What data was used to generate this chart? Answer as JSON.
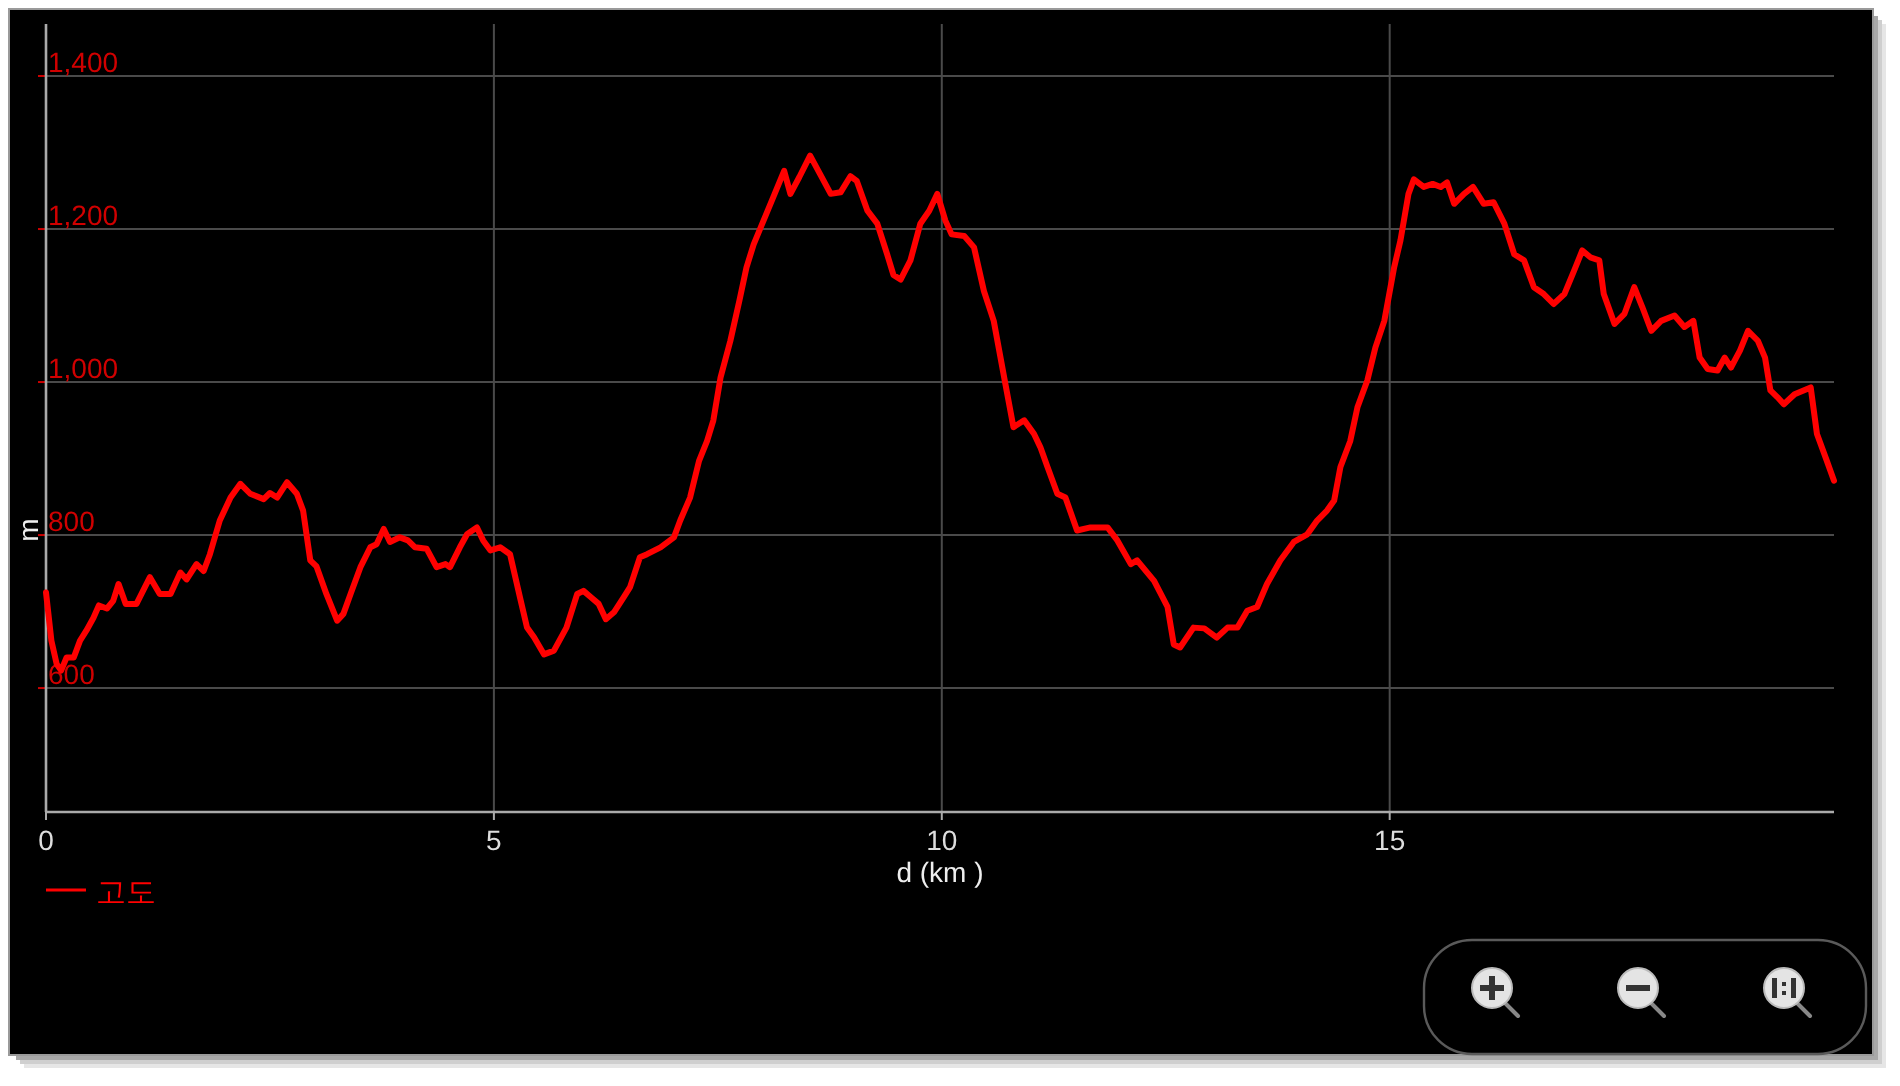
{
  "chart_data": {
    "type": "line",
    "xlabel": "d (km )",
    "ylabel": "m",
    "x": [
      0,
      0.06,
      0.12,
      0.17,
      0.23,
      0.31,
      0.38,
      0.45,
      0.53,
      0.59,
      0.68,
      0.75,
      0.81,
      0.89,
      1.01,
      1.16,
      1.27,
      1.39,
      1.5,
      1.57,
      1.68,
      1.76,
      1.83,
      1.94,
      2.06,
      2.17,
      2.28,
      2.43,
      2.5,
      2.58,
      2.69,
      2.8,
      2.87,
      2.95,
      3.02,
      3.13,
      3.25,
      3.32,
      3.4,
      3.51,
      3.62,
      3.69,
      3.77,
      3.84,
      3.95,
      4.04,
      4.12,
      4.25,
      4.36,
      4.46,
      4.51,
      4.62,
      4.7,
      4.81,
      4.88,
      4.96,
      5.07,
      5.18,
      5.29,
      5.37,
      5.45,
      5.56,
      5.67,
      5.81,
      5.93,
      6.0,
      6.08,
      6.17,
      6.25,
      6.34,
      6.45,
      6.52,
      6.63,
      6.71,
      6.86,
      7.01,
      7.08,
      7.19,
      7.29,
      7.38,
      7.45,
      7.53,
      7.64,
      7.74,
      7.82,
      7.9,
      8.01,
      8.12,
      8.24,
      8.31,
      8.41,
      8.53,
      8.64,
      8.76,
      8.87,
      8.98,
      9.05,
      9.17,
      9.28,
      9.39,
      9.46,
      9.54,
      9.65,
      9.76,
      9.86,
      9.95,
      10.04,
      10.11,
      10.25,
      10.36,
      10.47,
      10.58,
      10.69,
      10.8,
      10.92,
      11.03,
      11.1,
      11.18,
      11.29,
      11.38,
      11.51,
      11.66,
      11.85,
      11.96,
      12.11,
      12.18,
      12.37,
      12.52,
      12.59,
      12.66,
      12.81,
      12.93,
      13.07,
      13.19,
      13.3,
      13.41,
      13.52,
      13.63,
      13.78,
      13.93,
      14.08,
      14.19,
      14.3,
      14.38,
      14.45,
      14.56,
      14.64,
      14.75,
      14.84,
      14.94,
      15.05,
      15.12,
      15.21,
      15.27,
      15.38,
      15.48,
      15.57,
      15.64,
      15.72,
      15.83,
      15.93,
      16.05,
      16.16,
      16.28,
      16.39,
      16.5,
      16.61,
      16.72,
      16.83,
      16.95,
      17.06,
      17.15,
      17.24,
      17.34,
      17.39,
      17.51,
      17.62,
      17.73,
      17.82,
      17.92,
      18.03,
      18.18,
      18.29,
      18.39,
      18.46,
      18.55,
      18.66,
      18.74,
      18.81,
      18.91,
      19.0,
      19.11,
      19.19,
      19.25,
      19.33,
      19.4,
      19.52,
      19.7,
      19.77,
      19.88,
      19.96
    ],
    "series": [
      {
        "name": "고도",
        "color": "#ff0000",
        "values": [
          725,
          662,
          631,
          623,
          640,
          640,
          662,
          675,
          692,
          708,
          704,
          714,
          736,
          710,
          710,
          745,
          723,
          723,
          751,
          742,
          762,
          753,
          775,
          819,
          849,
          867,
          854,
          847,
          855,
          849,
          869,
          854,
          832,
          767,
          759,
          723,
          688,
          697,
          723,
          758,
          784,
          788,
          808,
          791,
          797,
          793,
          784,
          782,
          758,
          762,
          758,
          784,
          801,
          810,
          793,
          780,
          784,
          775,
          719,
          679,
          666,
          644,
          649,
          679,
          723,
          727,
          719,
          710,
          690,
          699,
          719,
          732,
          771,
          775,
          784,
          797,
          819,
          849,
          897,
          923,
          950,
          1006,
          1054,
          1106,
          1150,
          1180,
          1211,
          1242,
          1276,
          1246,
          1268,
          1296,
          1272,
          1246,
          1248,
          1269,
          1263,
          1224,
          1207,
          1167,
          1140,
          1134,
          1159,
          1207,
          1224,
          1246,
          1211,
          1193,
          1191,
          1176,
          1119,
          1080,
          1010,
          941,
          950,
          932,
          915,
          889,
          854,
          849,
          806,
          810,
          810,
          793,
          762,
          767,
          740,
          706,
          657,
          653,
          679,
          678,
          666,
          679,
          679,
          701,
          706,
          736,
          767,
          791,
          801,
          819,
          832,
          845,
          889,
          923,
          967,
          1002,
          1045,
          1080,
          1150,
          1185,
          1246,
          1265,
          1255,
          1259,
          1255,
          1261,
          1233,
          1246,
          1255,
          1233,
          1235,
          1207,
          1167,
          1159,
          1124,
          1115,
          1102,
          1115,
          1146,
          1172,
          1163,
          1159,
          1115,
          1076,
          1089,
          1124,
          1098,
          1067,
          1080,
          1087,
          1072,
          1080,
          1032,
          1017,
          1015,
          1032,
          1019,
          1041,
          1067,
          1054,
          1032,
          989,
          980,
          971,
          984,
          993,
          932,
          897,
          871
        ]
      }
    ],
    "xlim": [
      0,
      19.96
    ],
    "ylim": [
      438,
      1468
    ],
    "xticks": [
      0,
      5,
      10,
      15
    ],
    "yticks": [
      600,
      800,
      {
        "value": 1000,
        "label": "1,000"
      },
      {
        "value": 1200,
        "label": "1,200"
      },
      {
        "value": 1400,
        "label": "1,400"
      }
    ],
    "grid": true,
    "legend": "bottom left",
    "line_style": "solid"
  }
}
